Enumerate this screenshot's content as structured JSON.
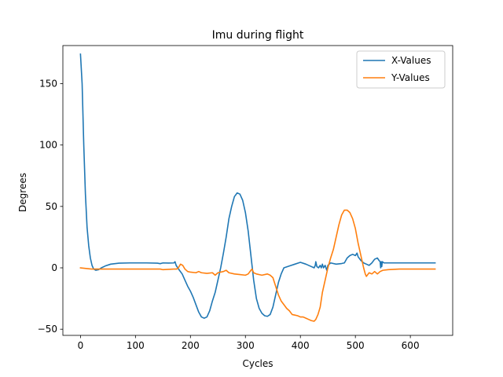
{
  "chart_data": {
    "type": "line",
    "title": "Imu during flight",
    "xlabel": "Cycles",
    "ylabel": "Degrees",
    "xlim": [
      -32,
      677
    ],
    "ylim": [
      -55,
      181
    ],
    "xticks": [
      0,
      100,
      200,
      300,
      400,
      500,
      600
    ],
    "yticks": [
      -50,
      0,
      50,
      100,
      150
    ],
    "grid": false,
    "legend_position": "top-right",
    "series": [
      {
        "name": "X-Values",
        "color": "#1f77b4",
        "points": [
          [
            0,
            174
          ],
          [
            3,
            150
          ],
          [
            6,
            100
          ],
          [
            9,
            60
          ],
          [
            12,
            33
          ],
          [
            15,
            18
          ],
          [
            18,
            8
          ],
          [
            21,
            2
          ],
          [
            24,
            -1
          ],
          [
            28,
            -2
          ],
          [
            33,
            -1.5
          ],
          [
            38,
            0
          ],
          [
            45,
            1.5
          ],
          [
            55,
            3
          ],
          [
            70,
            3.8
          ],
          [
            90,
            4
          ],
          [
            120,
            4
          ],
          [
            140,
            3.8
          ],
          [
            145,
            3.4
          ],
          [
            150,
            4
          ],
          [
            160,
            3.9
          ],
          [
            170,
            4
          ],
          [
            172,
            5
          ],
          [
            174,
            2
          ],
          [
            177,
            0
          ],
          [
            180,
            -2
          ],
          [
            185,
            -5
          ],
          [
            190,
            -10
          ],
          [
            195,
            -15
          ],
          [
            200,
            -19
          ],
          [
            205,
            -24
          ],
          [
            210,
            -30
          ],
          [
            215,
            -36
          ],
          [
            220,
            -40
          ],
          [
            225,
            -41
          ],
          [
            230,
            -40
          ],
          [
            235,
            -35
          ],
          [
            240,
            -27
          ],
          [
            245,
            -20
          ],
          [
            250,
            -10
          ],
          [
            255,
            0
          ],
          [
            260,
            12
          ],
          [
            265,
            25
          ],
          [
            270,
            40
          ],
          [
            275,
            50
          ],
          [
            280,
            58
          ],
          [
            285,
            61
          ],
          [
            290,
            60
          ],
          [
            295,
            55
          ],
          [
            300,
            45
          ],
          [
            305,
            30
          ],
          [
            310,
            10
          ],
          [
            315,
            -10
          ],
          [
            320,
            -25
          ],
          [
            325,
            -33
          ],
          [
            330,
            -37
          ],
          [
            335,
            -39
          ],
          [
            340,
            -39.5
          ],
          [
            345,
            -38
          ],
          [
            350,
            -32
          ],
          [
            355,
            -22
          ],
          [
            360,
            -12
          ],
          [
            365,
            -5
          ],
          [
            370,
            0
          ],
          [
            380,
            1.5
          ],
          [
            390,
            3
          ],
          [
            400,
            4.5
          ],
          [
            410,
            3
          ],
          [
            420,
            1
          ],
          [
            425,
            0
          ],
          [
            427,
            2
          ],
          [
            428,
            5
          ],
          [
            430,
            1
          ],
          [
            433,
            0
          ],
          [
            436,
            2
          ],
          [
            438,
            0
          ],
          [
            440,
            3
          ],
          [
            442,
            0
          ],
          [
            445,
            2
          ],
          [
            448,
            -2
          ],
          [
            450,
            2
          ],
          [
            455,
            4
          ],
          [
            465,
            3
          ],
          [
            475,
            3.5
          ],
          [
            480,
            4
          ],
          [
            485,
            8
          ],
          [
            490,
            10
          ],
          [
            495,
            11
          ],
          [
            500,
            10
          ],
          [
            503,
            12
          ],
          [
            505,
            9
          ],
          [
            510,
            6
          ],
          [
            515,
            4
          ],
          [
            520,
            3
          ],
          [
            525,
            2
          ],
          [
            530,
            4
          ],
          [
            535,
            7
          ],
          [
            540,
            8
          ],
          [
            543,
            6
          ],
          [
            545,
            5
          ],
          [
            546,
            0
          ],
          [
            547,
            5
          ],
          [
            548,
            1
          ],
          [
            549,
            5
          ],
          [
            552,
            4
          ],
          [
            570,
            4
          ],
          [
            600,
            4
          ],
          [
            630,
            4
          ],
          [
            645,
            4
          ]
        ]
      },
      {
        "name": "Y-Values",
        "color": "#ff7f0e",
        "points": [
          [
            0,
            0
          ],
          [
            10,
            -0.5
          ],
          [
            20,
            -1
          ],
          [
            40,
            -1
          ],
          [
            80,
            -1
          ],
          [
            120,
            -1
          ],
          [
            145,
            -1
          ],
          [
            150,
            -1.5
          ],
          [
            170,
            -1
          ],
          [
            175,
            -1
          ],
          [
            178,
            0
          ],
          [
            182,
            3
          ],
          [
            186,
            2
          ],
          [
            190,
            -1
          ],
          [
            195,
            -3
          ],
          [
            200,
            -3.5
          ],
          [
            210,
            -4
          ],
          [
            215,
            -3
          ],
          [
            220,
            -4
          ],
          [
            230,
            -4.5
          ],
          [
            240,
            -4
          ],
          [
            245,
            -6
          ],
          [
            250,
            -4
          ],
          [
            260,
            -3
          ],
          [
            265,
            -2
          ],
          [
            270,
            -4
          ],
          [
            280,
            -5
          ],
          [
            290,
            -5.5
          ],
          [
            300,
            -6
          ],
          [
            305,
            -5
          ],
          [
            310,
            -2
          ],
          [
            312,
            -1
          ],
          [
            315,
            -4
          ],
          [
            320,
            -5
          ],
          [
            330,
            -6
          ],
          [
            340,
            -5
          ],
          [
            345,
            -6
          ],
          [
            350,
            -8
          ],
          [
            355,
            -15
          ],
          [
            360,
            -22
          ],
          [
            365,
            -27
          ],
          [
            370,
            -30
          ],
          [
            375,
            -33
          ],
          [
            380,
            -35
          ],
          [
            385,
            -38
          ],
          [
            390,
            -38.5
          ],
          [
            395,
            -39
          ],
          [
            400,
            -40
          ],
          [
            405,
            -40
          ],
          [
            410,
            -41
          ],
          [
            415,
            -42
          ],
          [
            420,
            -43
          ],
          [
            425,
            -43.5
          ],
          [
            428,
            -42
          ],
          [
            432,
            -38
          ],
          [
            436,
            -32
          ],
          [
            440,
            -20
          ],
          [
            445,
            -10
          ],
          [
            450,
            0
          ],
          [
            455,
            8
          ],
          [
            460,
            15
          ],
          [
            465,
            25
          ],
          [
            470,
            35
          ],
          [
            475,
            43
          ],
          [
            480,
            47
          ],
          [
            485,
            47
          ],
          [
            490,
            45
          ],
          [
            495,
            40
          ],
          [
            500,
            32
          ],
          [
            505,
            20
          ],
          [
            510,
            10
          ],
          [
            515,
            0
          ],
          [
            518,
            -5
          ],
          [
            520,
            -7
          ],
          [
            525,
            -4
          ],
          [
            530,
            -5
          ],
          [
            535,
            -3
          ],
          [
            540,
            -5
          ],
          [
            545,
            -3
          ],
          [
            550,
            -2
          ],
          [
            560,
            -1.5
          ],
          [
            580,
            -1
          ],
          [
            600,
            -1
          ],
          [
            620,
            -1
          ],
          [
            645,
            -1
          ]
        ]
      }
    ]
  }
}
